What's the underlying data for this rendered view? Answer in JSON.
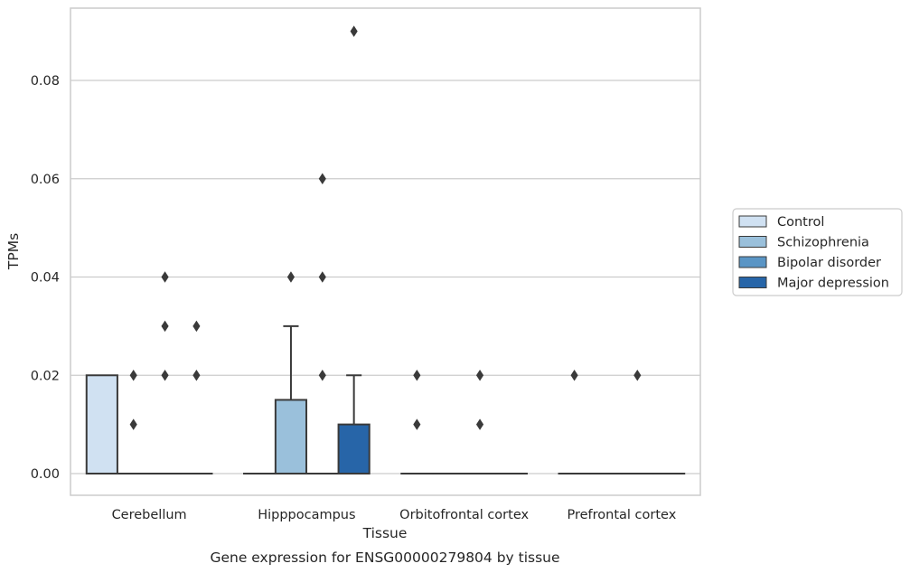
{
  "chart_data": {
    "type": "box",
    "title": "",
    "caption": "Gene expression for ENSG00000279804 by tissue",
    "xlabel": "Tissue",
    "ylabel": "TPMs",
    "ylim": [
      -0.0045,
      0.095
    ],
    "yticks": [
      0.0,
      0.02,
      0.04,
      0.06,
      0.08
    ],
    "ytick_labels": [
      "0.00",
      "0.02",
      "0.04",
      "0.06",
      "0.08"
    ],
    "grid": "horizontal",
    "legend_position": "right",
    "categories": [
      "Cerebellum",
      "Hipppocampus",
      "Orbitofrontal cortex",
      "Prefrontal cortex"
    ],
    "series": [
      {
        "name": "Control",
        "color": "#d0e1f2",
        "boxes": [
          {
            "q1": 0.0,
            "median": 0.0,
            "q3": 0.02,
            "whisker_low": 0.0,
            "whisker_high": 0.02,
            "outliers": []
          },
          {
            "q1": 0.0,
            "median": 0.0,
            "q3": 0.0,
            "whisker_low": 0.0,
            "whisker_high": 0.0,
            "outliers": []
          },
          {
            "q1": 0.0,
            "median": 0.0,
            "q3": 0.0,
            "whisker_low": 0.0,
            "whisker_high": 0.0,
            "outliers": [
              0.02,
              0.01
            ]
          },
          {
            "q1": 0.0,
            "median": 0.0,
            "q3": 0.0,
            "whisker_low": 0.0,
            "whisker_high": 0.0,
            "outliers": [
              0.02
            ]
          }
        ]
      },
      {
        "name": "Schizophrenia",
        "color": "#9ac0db",
        "boxes": [
          {
            "q1": 0.0,
            "median": 0.0,
            "q3": 0.0,
            "whisker_low": 0.0,
            "whisker_high": 0.0,
            "outliers": [
              0.02,
              0.01
            ]
          },
          {
            "q1": 0.0,
            "median": 0.0,
            "q3": 0.015,
            "whisker_low": 0.0,
            "whisker_high": 0.03,
            "outliers": [
              0.04
            ]
          },
          {
            "q1": 0.0,
            "median": 0.0,
            "q3": 0.0,
            "whisker_low": 0.0,
            "whisker_high": 0.0,
            "outliers": []
          },
          {
            "q1": 0.0,
            "median": 0.0,
            "q3": 0.0,
            "whisker_low": 0.0,
            "whisker_high": 0.0,
            "outliers": []
          }
        ]
      },
      {
        "name": "Bipolar disorder",
        "color": "#5a95c5",
        "boxes": [
          {
            "q1": 0.0,
            "median": 0.0,
            "q3": 0.0,
            "whisker_low": 0.0,
            "whisker_high": 0.0,
            "outliers": [
              0.04,
              0.03,
              0.02
            ]
          },
          {
            "q1": 0.0,
            "median": 0.0,
            "q3": 0.0,
            "whisker_low": 0.0,
            "whisker_high": 0.0,
            "outliers": [
              0.06,
              0.04,
              0.02
            ]
          },
          {
            "q1": 0.0,
            "median": 0.0,
            "q3": 0.0,
            "whisker_low": 0.0,
            "whisker_high": 0.0,
            "outliers": [
              0.02,
              0.01
            ]
          },
          {
            "q1": 0.0,
            "median": 0.0,
            "q3": 0.0,
            "whisker_low": 0.0,
            "whisker_high": 0.0,
            "outliers": [
              0.02
            ]
          }
        ]
      },
      {
        "name": "Major depression",
        "color": "#2765a8",
        "boxes": [
          {
            "q1": 0.0,
            "median": 0.0,
            "q3": 0.0,
            "whisker_low": 0.0,
            "whisker_high": 0.0,
            "outliers": [
              0.03,
              0.02
            ]
          },
          {
            "q1": 0.0,
            "median": 0.0,
            "q3": 0.01,
            "whisker_low": 0.0,
            "whisker_high": 0.02,
            "outliers": [
              0.09
            ]
          },
          {
            "q1": 0.0,
            "median": 0.0,
            "q3": 0.0,
            "whisker_low": 0.0,
            "whisker_high": 0.0,
            "outliers": []
          },
          {
            "q1": 0.0,
            "median": 0.0,
            "q3": 0.0,
            "whisker_low": 0.0,
            "whisker_high": 0.0,
            "outliers": []
          }
        ]
      }
    ]
  }
}
